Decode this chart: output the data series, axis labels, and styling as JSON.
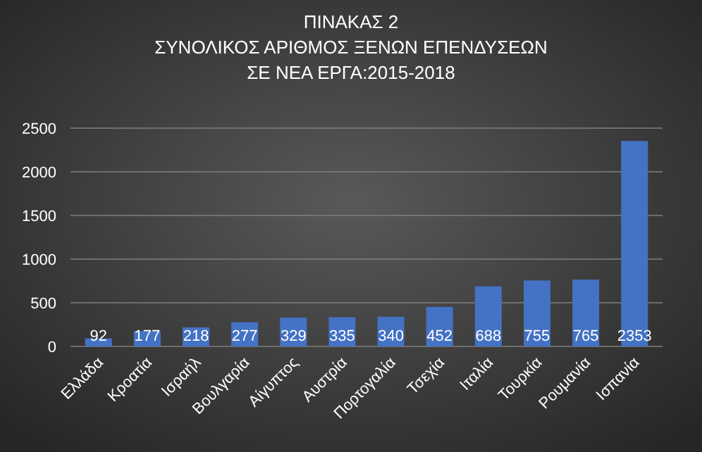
{
  "chart_data": {
    "type": "bar",
    "title": "ΠΙΝΑΚΑΣ 2\nΣΥΝΟΛΙΚΟΣ ΑΡΙΘΜΟΣ ΞΕΝΩΝ ΕΠΕΝΔΥΣΕΩΝ\nΣΕ ΝΕΑ ΕΡΓΑ:2015-2018",
    "categories": [
      "Ελλάδα",
      "Κροατία",
      "Ισραήλ",
      "Βουλγαρία",
      "Αίγυπτος",
      "Αυστρία",
      "Πορτογαλία",
      "Τσεχία",
      "Ιταλία",
      "Τουρκία",
      "Ρουμανία",
      "Ισπανία"
    ],
    "values": [
      92,
      177,
      218,
      277,
      329,
      335,
      340,
      452,
      688,
      755,
      765,
      2353
    ],
    "color": "#4472c4",
    "ylim": [
      0,
      2500
    ],
    "yticks": [
      0,
      500,
      1000,
      1500,
      2000,
      2500
    ],
    "grid": "y",
    "data_labels": true
  }
}
